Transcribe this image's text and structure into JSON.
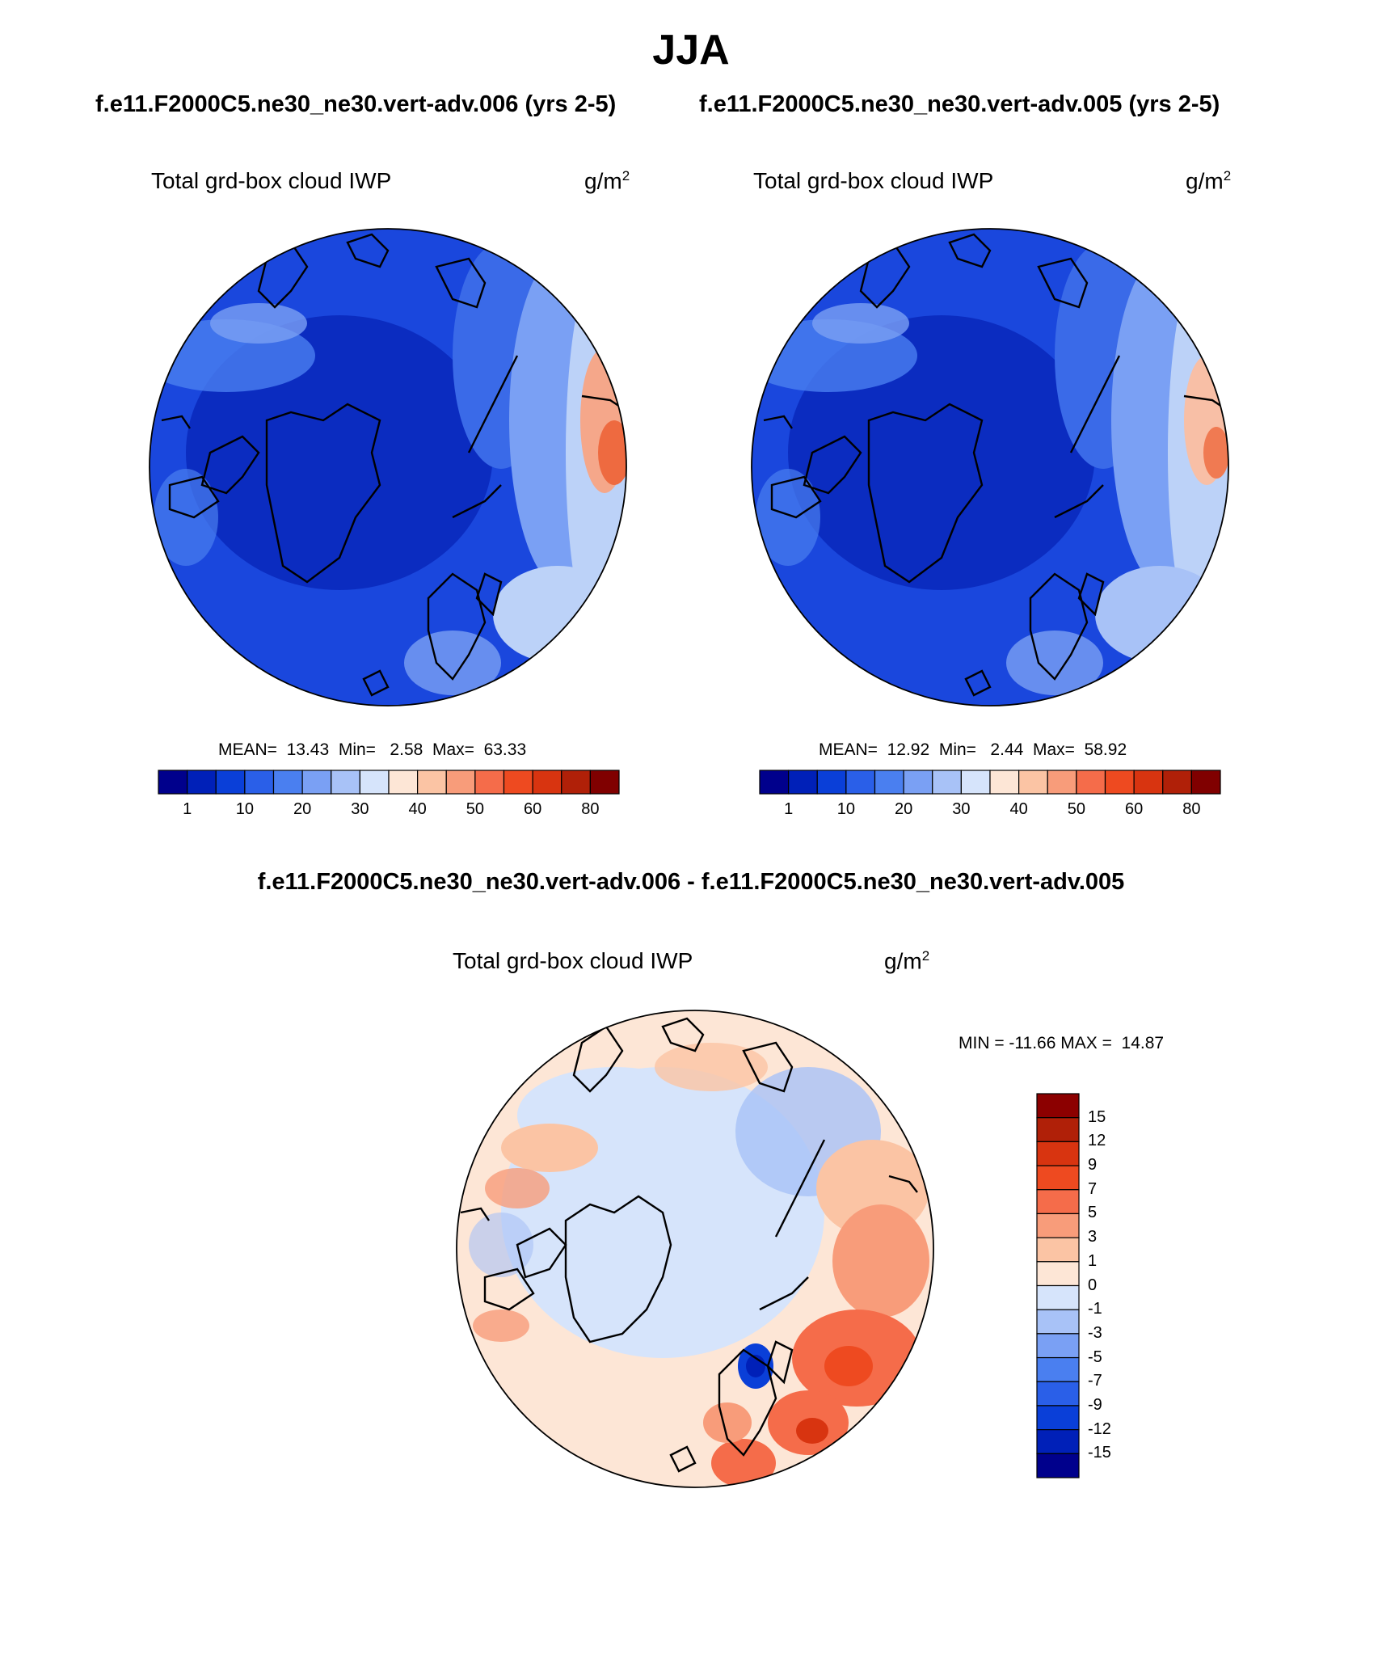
{
  "figure": {
    "title": "JJA",
    "subtitle_left": "f.e11.F2000C5.ne30_ne30.vert-adv.006 (yrs 2-5)",
    "subtitle_right": "f.e11.F2000C5.ne30_ne30.vert-adv.005 (yrs 2-5)",
    "diff_title": "f.e11.F2000C5.ne30_ne30.vert-adv.006 - f.e11.F2000C5.ne30_ne30.vert-adv.005"
  },
  "panels": [
    {
      "label": "Total grd-box cloud IWP",
      "unit_base": "g/m",
      "unit_exp": "2",
      "stats": "MEAN=  13.43  Min=   2.58  Max=  63.33"
    },
    {
      "label": "Total grd-box cloud IWP",
      "unit_base": "g/m",
      "unit_exp": "2",
      "stats": "MEAN=  12.92  Min=   2.44  Max=  58.92"
    },
    {
      "label": "Total grd-box cloud IWP",
      "unit_base": "g/m",
      "unit_exp": "2",
      "stats": "MIN = -11.66 MAX =  14.87"
    }
  ],
  "colorbar_main": {
    "colors": [
      "#00008c",
      "#0020b8",
      "#0a3fd8",
      "#2a5fe8",
      "#4a7ff0",
      "#7aa0f4",
      "#a8c2f7",
      "#d6e4fb",
      "#fde6d6",
      "#fbc4a4",
      "#f89c7a",
      "#f56c4a",
      "#ee4a20",
      "#d83410",
      "#b02008",
      "#800000"
    ],
    "ticks": [
      "1",
      "10",
      "20",
      "30",
      "40",
      "50",
      "60",
      "80"
    ]
  },
  "colorbar_diff": {
    "colors_top_to_bottom": [
      "#8c0000",
      "#b02008",
      "#d83410",
      "#ee4a20",
      "#f56c4a",
      "#f89c7a",
      "#fbc4a4",
      "#fde6d6",
      "#d6e4fb",
      "#a8c2f7",
      "#7aa0f4",
      "#4a7ff0",
      "#2a5fe8",
      "#0a3fd8",
      "#0020b8",
      "#00008c"
    ],
    "ticks": [
      "15",
      "12",
      "9",
      "7",
      "5",
      "3",
      "1",
      "0",
      "-1",
      "-3",
      "-5",
      "-7",
      "-9",
      "-12",
      "-15"
    ]
  }
}
